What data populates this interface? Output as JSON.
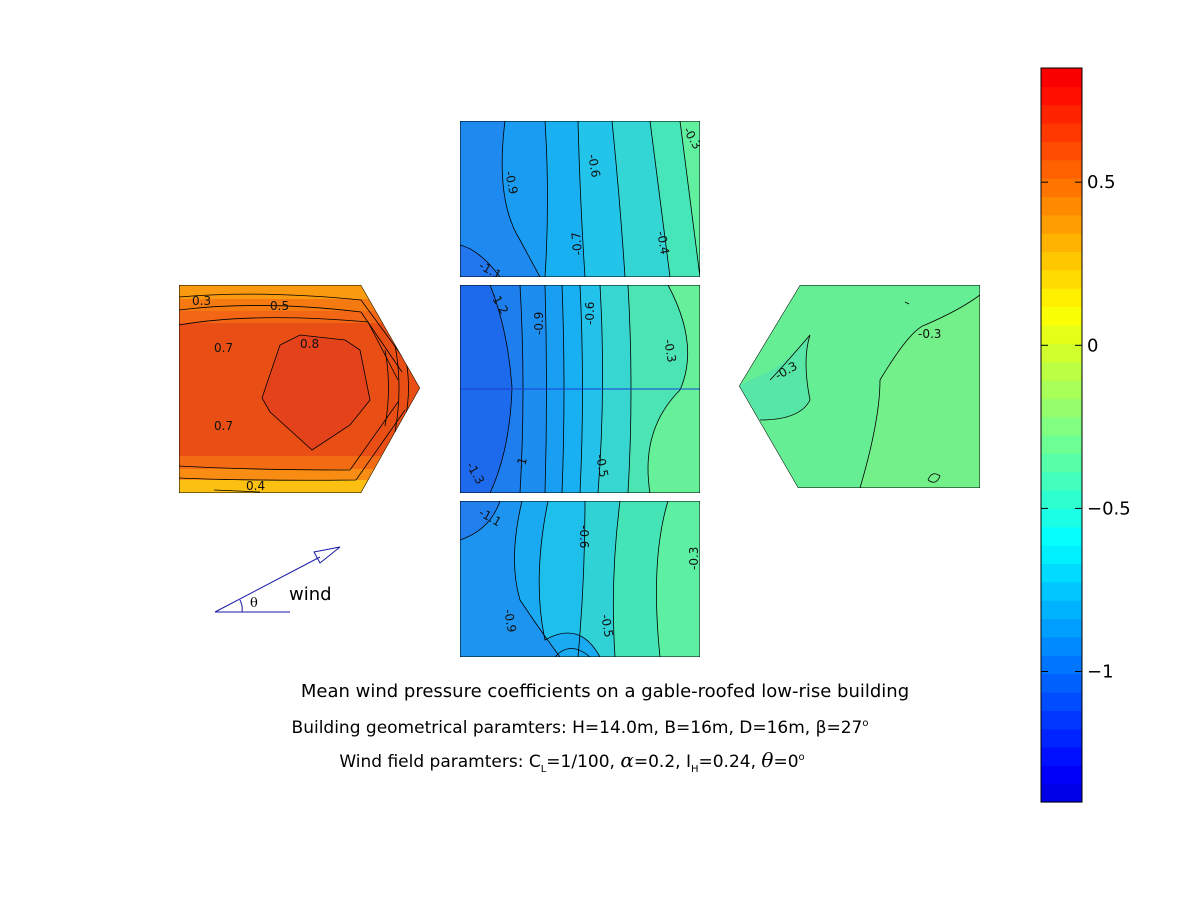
{
  "figure": {
    "title": "Mean wind pressure coefficients on a gable-roofed low-rise building",
    "subtitle": {
      "building_label": "Building geometrical paramters: H=14.0m, B=16m, D=16m,",
      "beta_label": "β=27",
      "beta_unit": "o",
      "wind_label": "Wind field paramters: C",
      "cl_sub": "L",
      "cl_value": "=1/100,",
      "alpha_label": "α",
      "alpha_value": "=0.2, I",
      "ih_sub": "H",
      "ih_value": "=0.24,",
      "theta_label": "θ",
      "theta_value": "=0",
      "theta_unit": "o"
    },
    "wind_indicator": {
      "label": "wind",
      "angle_symbol": "θ"
    }
  },
  "colorbar": {
    "min": -1.4,
    "max": 0.85,
    "ticks": [
      "0.5",
      "0",
      "−0.5",
      "−1"
    ],
    "tick_values": [
      0.5,
      0,
      -0.5,
      -1
    ],
    "colormap": "jet",
    "levels": 40
  },
  "panels": {
    "windward_wall": {
      "contour_labels": [
        "0.3",
        "0.5",
        "0.7",
        "0.8",
        "0.7",
        "0.4"
      ],
      "fill_color": "#f25a16"
    },
    "upper_roof": {
      "contour_labels": [
        "-0.9",
        "-0.6",
        "-0.3",
        "-0.7",
        "-0.4",
        "-1.1"
      ],
      "fill_color": "#27b4f2"
    },
    "side_wall": {
      "contour_labels": [
        "-1.2",
        "-0.9",
        "-0.6",
        "-0.3",
        "-1.3",
        "-1",
        "-0.5"
      ],
      "fill_color": "#1f8ef0"
    },
    "lower_roof": {
      "contour_labels": [
        "-1.1",
        "-0.6",
        "-0.9",
        "-0.5",
        "-0.3"
      ],
      "fill_color": "#2ea9f0"
    },
    "leeward_wall": {
      "contour_labels": [
        "-0.3",
        "-0.3"
      ],
      "fill_color": "#70ee92"
    }
  }
}
